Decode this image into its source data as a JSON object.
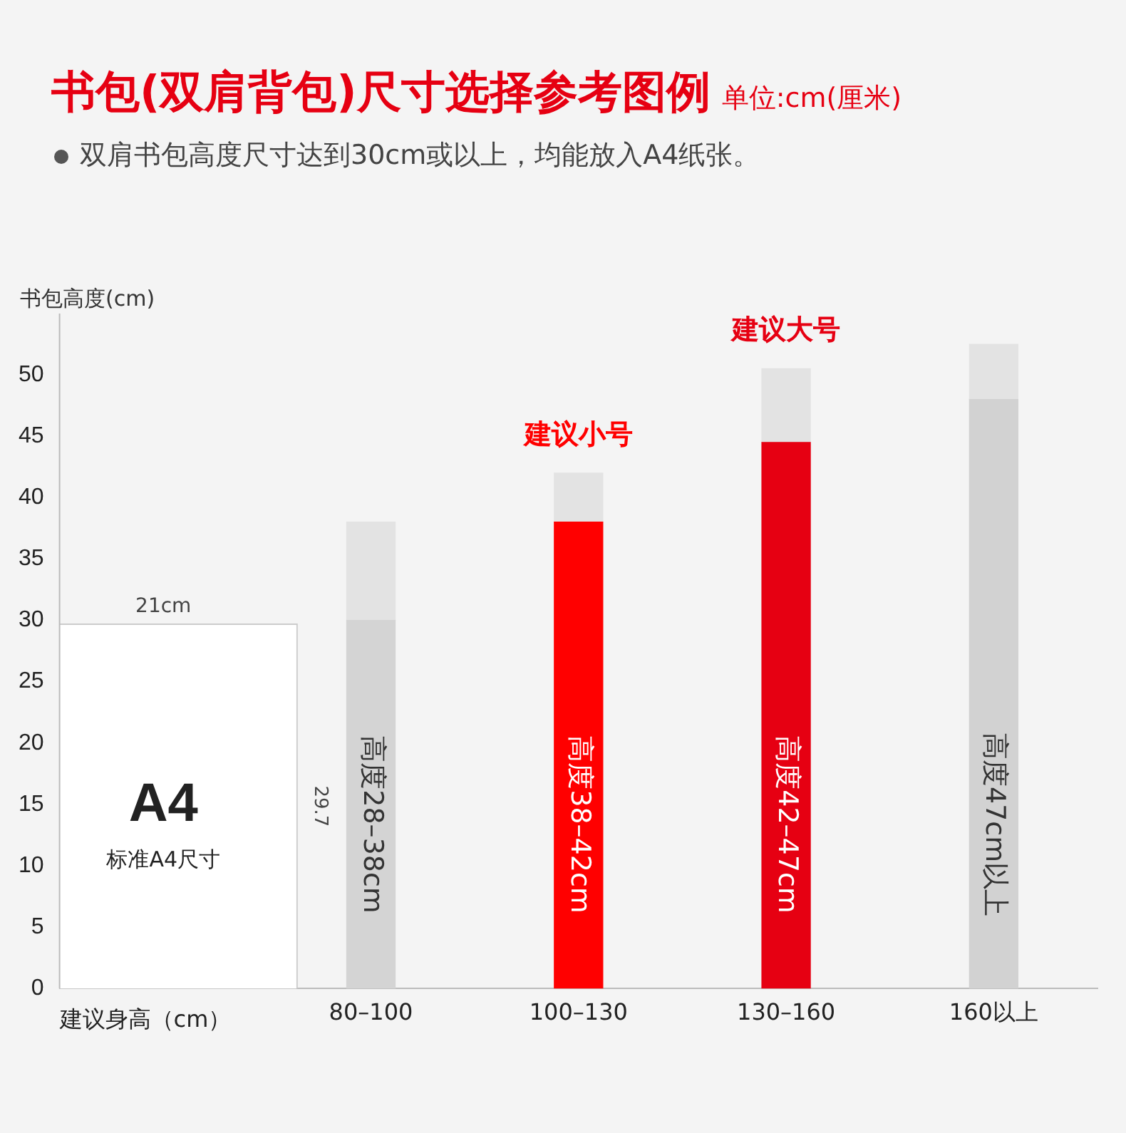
{
  "chart_data": {
    "type": "bar",
    "title": "书包(双肩背包)尺寸选择参考图例",
    "subtitle": "双肩书包高度尺寸达到30cm或以上，均能放入A4纸张。",
    "ylabel": "书包高度(cm)",
    "xlabel": "建议身高（cm）",
    "categories": [
      null,
      "80–100",
      "100–130",
      "130–160",
      "160以上"
    ],
    "stacked": true,
    "series": [
      {
        "color": "#ffffff",
        "values": [
          29.7,
          null,
          null,
          null,
          null
        ]
      },
      {
        "colors": [
          null,
          "#d4d4d4",
          "#ff0000",
          "#e60012",
          "#d2d2d2"
        ],
        "values": [
          null,
          30,
          38,
          44.5,
          48
        ]
      },
      {
        "color": "#e3e3e3",
        "values": [
          null,
          8,
          4,
          6,
          4.5
        ]
      }
    ],
    "ylim": [
      0,
      55
    ],
    "yticks": [
      0,
      5,
      10,
      15,
      20,
      25,
      30,
      35,
      40,
      45,
      50
    ],
    "grid": false,
    "legend": false,
    "annotations": [
      "单位:cm(厘米)",
      "A4",
      "标准A4尺寸",
      "21cm",
      "29.7",
      "高度28–38cm",
      "高度38–42cm",
      "高度42–47cm",
      "高度47cm以上",
      "建议小号",
      "建议大号"
    ]
  }
}
